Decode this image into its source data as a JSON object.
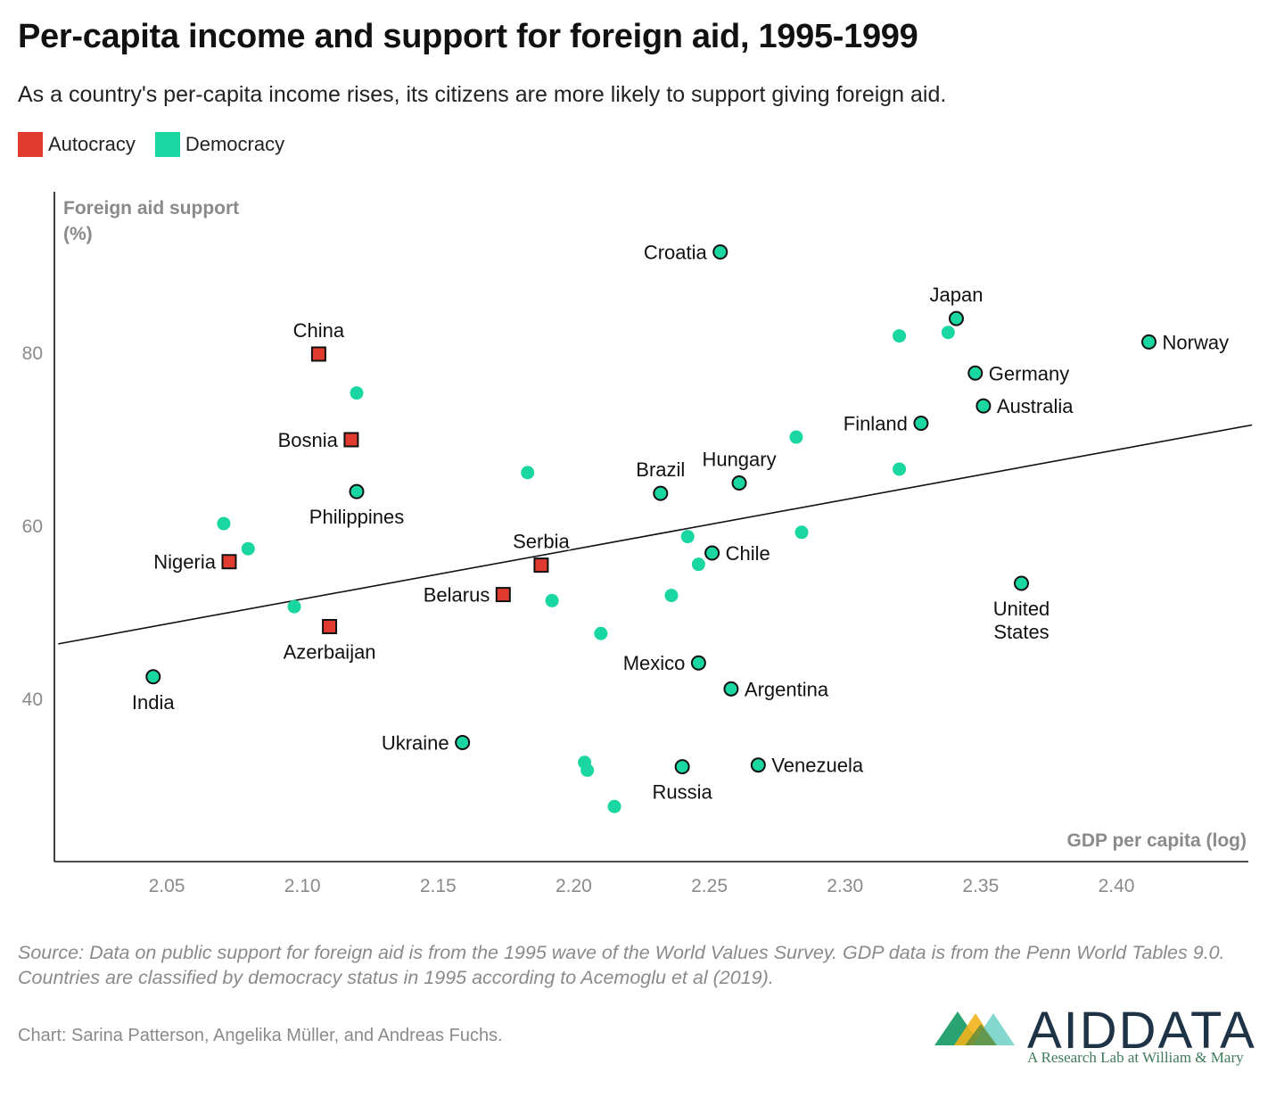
{
  "title": "Per-capita income and support for foreign aid, 1995-1999",
  "subtitle": "As a country's per-capita income rises, its citizens are more likely to support giving foreign aid.",
  "legend": [
    {
      "label": "Autocracy",
      "color": "#e03b2e"
    },
    {
      "label": "Democracy",
      "color": "#1ad6a0"
    }
  ],
  "source": "Source: Data on public support for foreign aid is from the 1995 wave of the World Values Survey. GDP data is from the Penn World Tables 9.0. Countries are classified by democracy status in 1995 according to Acemoglu et al (2019).",
  "credit": "Chart: Sarina Patterson, Angelika Müller, and Andreas Fuchs.",
  "logo": {
    "word": "AIDDATA",
    "tagline": "A Research Lab at William & Mary"
  },
  "chart_data": {
    "type": "scatter",
    "ylabel_lines": [
      "Foreign aid support",
      "(%)"
    ],
    "xlabel": "GDP per capita (log)",
    "xlim": [
      2.01,
      2.45
    ],
    "ylim": [
      20,
      98
    ],
    "xticks": [
      {
        "value": 2.05,
        "label": "2.05"
      },
      {
        "value": 2.1,
        "label": "2.10"
      },
      {
        "value": 2.15,
        "label": "2.15"
      },
      {
        "value": 2.2,
        "label": "2.20"
      },
      {
        "value": 2.25,
        "label": "2.25"
      },
      {
        "value": 2.3,
        "label": "2.30"
      },
      {
        "value": 2.35,
        "label": "2.35"
      },
      {
        "value": 2.4,
        "label": "2.40"
      }
    ],
    "yticks": [
      {
        "value": 40,
        "label": "40"
      },
      {
        "value": 60,
        "label": "60"
      },
      {
        "value": 80,
        "label": "80"
      }
    ],
    "grid": false,
    "trendline": {
      "x1": 2.01,
      "y1": 46.3,
      "x2": 2.45,
      "y2": 71.6
    },
    "colors": {
      "Autocracy": "#e03b2e",
      "Democracy": "#1ad6a0",
      "unlabeled": "#1ad6a0"
    },
    "points": [
      {
        "label": "China",
        "regime": "Autocracy",
        "x": 2.106,
        "y": 79.8,
        "pos": "above"
      },
      {
        "label": "Bosnia",
        "regime": "Autocracy",
        "x": 2.118,
        "y": 69.9,
        "pos": "left"
      },
      {
        "label": "Nigeria",
        "regime": "Autocracy",
        "x": 2.073,
        "y": 55.8,
        "pos": "left"
      },
      {
        "label": "Azerbaijan",
        "regime": "Autocracy",
        "x": 2.11,
        "y": 48.3,
        "pos": "below"
      },
      {
        "label": "Serbia",
        "regime": "Autocracy",
        "x": 2.188,
        "y": 55.4,
        "pos": "above"
      },
      {
        "label": "Belarus",
        "regime": "Autocracy",
        "x": 2.174,
        "y": 52.0,
        "pos": "left"
      },
      {
        "label": "Philippines",
        "regime": "Democracy",
        "x": 2.12,
        "y": 63.9,
        "pos": "below"
      },
      {
        "label": "India",
        "regime": "Democracy",
        "x": 2.045,
        "y": 42.5,
        "pos": "below"
      },
      {
        "label": "Ukraine",
        "regime": "Democracy",
        "x": 2.159,
        "y": 34.9,
        "pos": "left"
      },
      {
        "label": "Croatia",
        "regime": "Democracy",
        "x": 2.254,
        "y": 91.6,
        "pos": "left"
      },
      {
        "label": "Brazil",
        "regime": "Democracy",
        "x": 2.232,
        "y": 63.7,
        "pos": "above"
      },
      {
        "label": "Hungary",
        "regime": "Democracy",
        "x": 2.261,
        "y": 64.9,
        "pos": "above"
      },
      {
        "label": "Chile",
        "regime": "Democracy",
        "x": 2.251,
        "y": 56.8,
        "pos": "right"
      },
      {
        "label": "Mexico",
        "regime": "Democracy",
        "x": 2.246,
        "y": 44.1,
        "pos": "left"
      },
      {
        "label": "Argentina",
        "regime": "Democracy",
        "x": 2.258,
        "y": 41.1,
        "pos": "right"
      },
      {
        "label": "Russia",
        "regime": "Democracy",
        "x": 2.24,
        "y": 32.1,
        "pos": "below"
      },
      {
        "label": "Venezuela",
        "regime": "Democracy",
        "x": 2.268,
        "y": 32.3,
        "pos": "right"
      },
      {
        "label": "Japan",
        "regime": "Democracy",
        "x": 2.341,
        "y": 83.9,
        "pos": "above"
      },
      {
        "label": "Norway",
        "regime": "Democracy",
        "x": 2.412,
        "y": 81.2,
        "pos": "right"
      },
      {
        "label": "Germany",
        "regime": "Democracy",
        "x": 2.348,
        "y": 77.6,
        "pos": "right"
      },
      {
        "label": "Australia",
        "regime": "Democracy",
        "x": 2.351,
        "y": 73.8,
        "pos": "right"
      },
      {
        "label": "Finland",
        "regime": "Democracy",
        "x": 2.328,
        "y": 71.8,
        "pos": "left"
      },
      {
        "label": "United States",
        "regime": "Democracy",
        "x": 2.365,
        "y": 53.3,
        "pos": "below",
        "label_lines": [
          "United",
          "States"
        ]
      },
      {
        "label": "",
        "regime": "unlabeled",
        "x": 2.12,
        "y": 75.3
      },
      {
        "label": "",
        "regime": "unlabeled",
        "x": 2.183,
        "y": 66.1
      },
      {
        "label": "",
        "regime": "unlabeled",
        "x": 2.071,
        "y": 60.2
      },
      {
        "label": "",
        "regime": "unlabeled",
        "x": 2.08,
        "y": 57.3
      },
      {
        "label": "",
        "regime": "unlabeled",
        "x": 2.097,
        "y": 50.6
      },
      {
        "label": "",
        "regime": "unlabeled",
        "x": 2.192,
        "y": 51.3
      },
      {
        "label": "",
        "regime": "unlabeled",
        "x": 2.21,
        "y": 47.5
      },
      {
        "label": "",
        "regime": "unlabeled",
        "x": 2.242,
        "y": 58.7
      },
      {
        "label": "",
        "regime": "unlabeled",
        "x": 2.246,
        "y": 55.5
      },
      {
        "label": "",
        "regime": "unlabeled",
        "x": 2.236,
        "y": 51.9
      },
      {
        "label": "",
        "regime": "unlabeled",
        "x": 2.204,
        "y": 32.6
      },
      {
        "label": "",
        "regime": "unlabeled",
        "x": 2.205,
        "y": 31.7
      },
      {
        "label": "",
        "regime": "unlabeled",
        "x": 2.215,
        "y": 27.5
      },
      {
        "label": "",
        "regime": "unlabeled",
        "x": 2.282,
        "y": 70.2
      },
      {
        "label": "",
        "regime": "unlabeled",
        "x": 2.284,
        "y": 59.2
      },
      {
        "label": "",
        "regime": "unlabeled",
        "x": 2.32,
        "y": 66.5
      },
      {
        "label": "",
        "regime": "unlabeled",
        "x": 2.32,
        "y": 81.9
      },
      {
        "label": "",
        "regime": "unlabeled",
        "x": 2.338,
        "y": 82.3
      }
    ]
  }
}
